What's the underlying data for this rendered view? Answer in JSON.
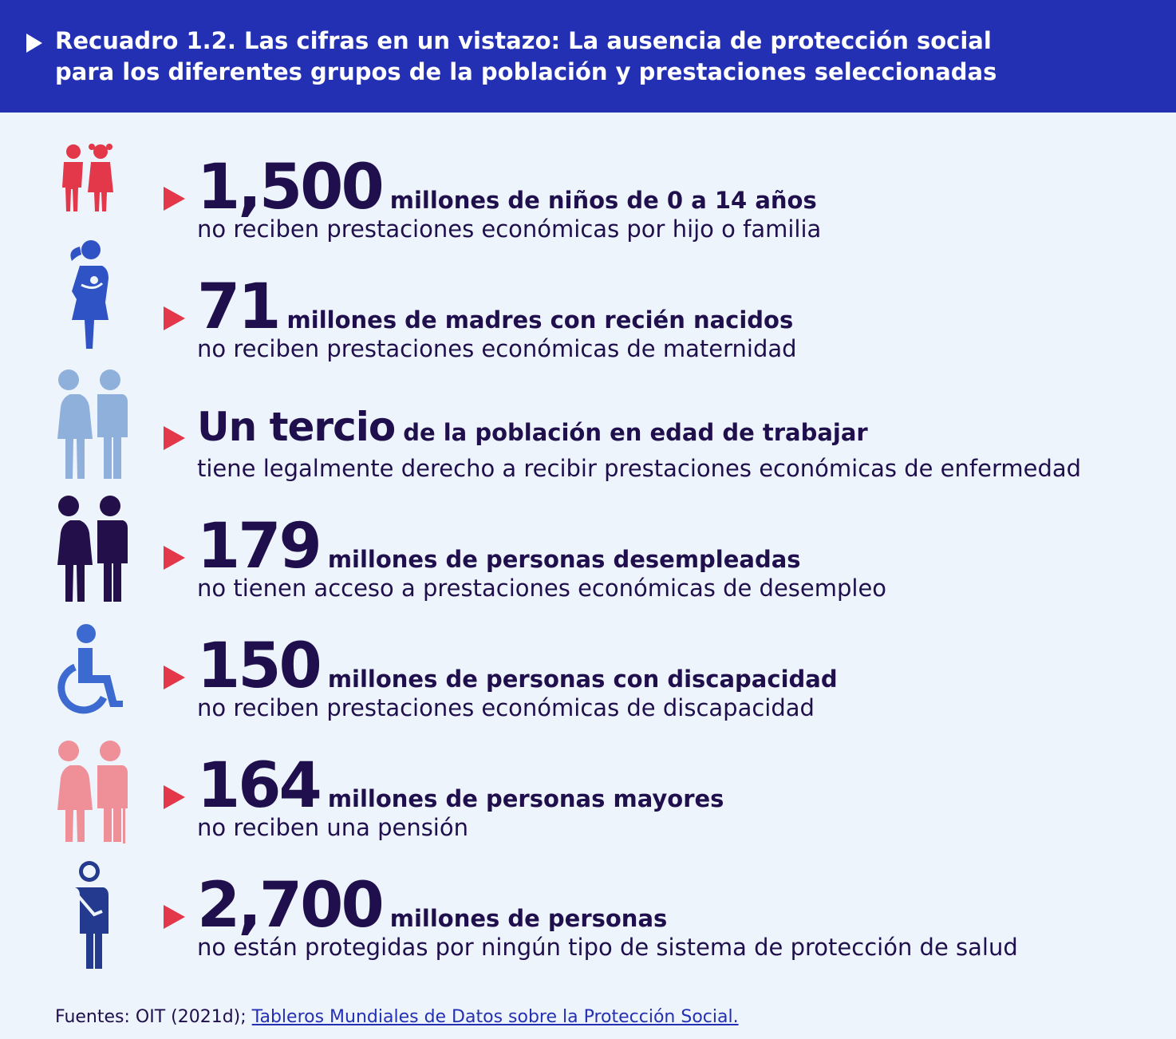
{
  "header": {
    "title_line1": "Recuadro 1.2.  Las cifras en un vistazo: La ausencia de protección social",
    "title_line2": "para los diferentes grupos de la población y prestaciones seleccionadas"
  },
  "colors": {
    "header_bg": "#2430b4",
    "background": "#eef4fb",
    "accent_arrow": "#e2384a",
    "text_dark": "#1f0f4d"
  },
  "items": [
    {
      "icon": "children-icon",
      "figure": "1,500",
      "label": "millones de niños de 0 a 14 años",
      "detail": "no reciben prestaciones económicas por hijo o familia"
    },
    {
      "icon": "mother-with-baby-icon",
      "figure": "71",
      "label": "millones de madres con recién nacidos",
      "detail": "no reciben prestaciones económicas de maternidad"
    },
    {
      "icon": "working-age-couple-icon",
      "figure": "Un tercio",
      "label": "de la población en edad de trabajar",
      "detail": "tiene legalmente derecho a recibir prestaciones económicas de enfermedad"
    },
    {
      "icon": "unemployed-couple-icon",
      "figure": "179",
      "label": "millones de personas desempleadas",
      "detail": "no tienen acceso a prestaciones económicas de desempleo"
    },
    {
      "icon": "wheelchair-icon",
      "figure": "150",
      "label": "millones de personas con discapacidad",
      "detail": "no reciben prestaciones económicas de discapacidad"
    },
    {
      "icon": "older-couple-icon",
      "figure": "164",
      "label": "millones de personas mayores",
      "detail": "no reciben una pensión"
    },
    {
      "icon": "injured-person-icon",
      "figure": "2,700",
      "label": "millones de personas",
      "detail": "no están protegidas por ningún tipo de sistema de protección de salud"
    }
  ],
  "footer": {
    "prefix": "Fuentes: OIT (2021d); ",
    "link": "Tableros Mundiales de Datos sobre la Protección Social."
  }
}
